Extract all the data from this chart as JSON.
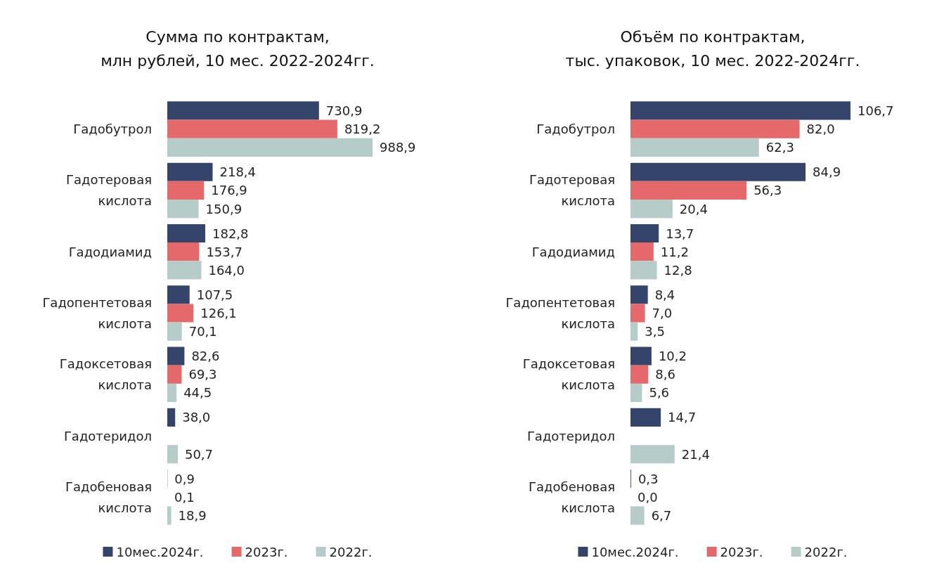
{
  "chart_data": [
    {
      "type": "bar",
      "orientation": "horizontal",
      "title": "Сумма по контрактам,\nмлн рублей, 10 мес. 2022-2024гг.",
      "categories": [
        "Гадобутрол",
        "Гадотеровая\nкислота",
        "Гадодиамид",
        "Гадопентетовая\nкислота",
        "Гадоксетовая\nкислота",
        "Гадотеридол",
        "Гадобеновая\nкислота"
      ],
      "legend": "bottom",
      "series": [
        {
          "name": "10мес.2024г.",
          "color": "#35446b",
          "values": [
            730.9,
            218.4,
            182.8,
            107.5,
            82.6,
            38.0,
            0.9
          ],
          "value_labels": [
            "730,9",
            "218,4",
            "182,8",
            "107,5",
            "82,6",
            "38,0",
            "0,9"
          ]
        },
        {
          "name": "2023г.",
          "color": "#e5696a",
          "values": [
            819.2,
            176.9,
            153.7,
            126.1,
            69.3,
            null,
            0.1
          ],
          "value_labels": [
            "819,2",
            "176,9",
            "153,7",
            "126,1",
            "69,3",
            null,
            "0,1"
          ]
        },
        {
          "name": "2022г.",
          "color": "#b5ccc9",
          "values": [
            988.9,
            150.9,
            164.0,
            70.1,
            44.5,
            50.7,
            18.9
          ],
          "value_labels": [
            "988,9",
            "150,9",
            "164,0",
            "70,1",
            "44,5",
            "50,7",
            "18,9"
          ]
        }
      ]
    },
    {
      "type": "bar",
      "orientation": "horizontal",
      "title": "Объём по контрактам,\nтыс. упаковок, 10 мес. 2022-2024гг.",
      "categories": [
        "Гадобутрол",
        "Гадотеровая\nкислота",
        "Гадодиамид",
        "Гадопентетовая\nкислота",
        "Гадоксетовая\nкислота",
        "Гадотеридол",
        "Гадобеновая\nкислота"
      ],
      "legend": "bottom",
      "series": [
        {
          "name": "10мес.2024г.",
          "color": "#35446b",
          "values": [
            106.7,
            84.9,
            13.7,
            8.4,
            10.2,
            14.7,
            0.3
          ],
          "value_labels": [
            "106,7",
            "84,9",
            "13,7",
            "8,4",
            "10,2",
            "14,7",
            "0,3"
          ]
        },
        {
          "name": "2023г.",
          "color": "#e5696a",
          "values": [
            82.0,
            56.3,
            11.2,
            7.0,
            8.6,
            null,
            0.0
          ],
          "value_labels": [
            "82,0",
            "56,3",
            "11,2",
            "7,0",
            "8,6",
            null,
            "0,0"
          ]
        },
        {
          "name": "2022г.",
          "color": "#b5ccc9",
          "values": [
            62.3,
            20.4,
            12.8,
            3.5,
            5.6,
            21.4,
            6.7
          ],
          "value_labels": [
            "62,3",
            "20,4",
            "12,8",
            "3,5",
            "5,6",
            "21,4",
            "6,7"
          ]
        }
      ]
    }
  ]
}
